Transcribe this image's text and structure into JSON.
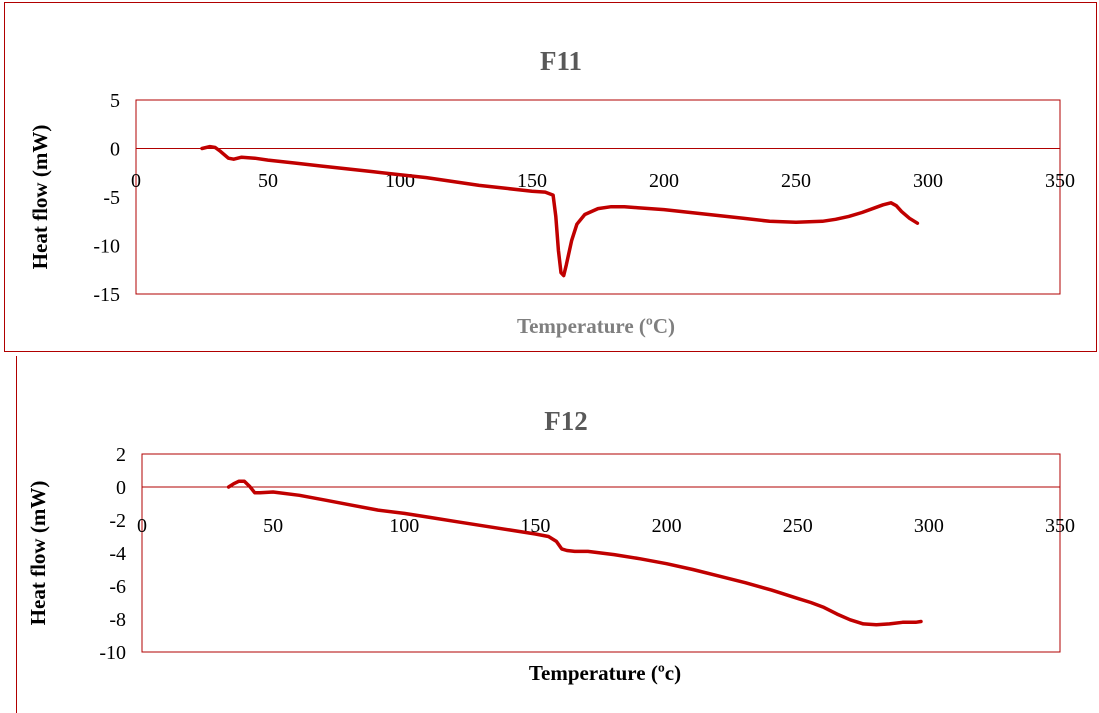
{
  "colors": {
    "line": "#c00000",
    "frame": "#b00000",
    "title": "#595959",
    "xlabel_f11": "#7f7f7f",
    "xlabel_f12": "#000000"
  },
  "chart_data": [
    {
      "type": "line",
      "title": "F11",
      "xlabel": "Temperature (ºC)",
      "ylabel": "Heat flow (mW)",
      "xlim": [
        0,
        350
      ],
      "ylim": [
        -15,
        5
      ],
      "xticks": [
        "0",
        "50",
        "100",
        "150",
        "200",
        "250",
        "300",
        "350"
      ],
      "yticks": [
        "5",
        "0",
        "-5",
        "-10",
        "-15"
      ],
      "grid": false,
      "series": [
        {
          "x": [
            25,
            28,
            30,
            32,
            35,
            37,
            40,
            45,
            50,
            60,
            70,
            80,
            90,
            100,
            110,
            120,
            130,
            140,
            150,
            155,
            158,
            159,
            160,
            161,
            162,
            163,
            165,
            167,
            170,
            175,
            180,
            185,
            190,
            200,
            210,
            220,
            230,
            240,
            250,
            260,
            265,
            270,
            275,
            280,
            283,
            286,
            288,
            290,
            293,
            296
          ],
          "y": [
            0,
            0.2,
            0.1,
            -0.3,
            -1.0,
            -1.1,
            -0.9,
            -1.0,
            -1.2,
            -1.5,
            -1.8,
            -2.1,
            -2.4,
            -2.7,
            -3.0,
            -3.4,
            -3.8,
            -4.1,
            -4.4,
            -4.5,
            -4.8,
            -7.0,
            -10.5,
            -12.8,
            -13.1,
            -12.0,
            -9.5,
            -7.8,
            -6.8,
            -6.2,
            -6.0,
            -6.0,
            -6.1,
            -6.3,
            -6.6,
            -6.9,
            -7.2,
            -7.5,
            -7.6,
            -7.5,
            -7.3,
            -7.0,
            -6.6,
            -6.1,
            -5.8,
            -5.6,
            -5.9,
            -6.5,
            -7.2,
            -7.7
          ]
        }
      ]
    },
    {
      "type": "line",
      "title": "F12",
      "xlabel": "Temperature (ºc)",
      "ylabel": "Heat flow (mW)",
      "xlim": [
        0,
        350
      ],
      "ylim": [
        -10,
        2
      ],
      "xticks": [
        "0",
        "50",
        "100",
        "150",
        "200",
        "250",
        "300",
        "350"
      ],
      "yticks": [
        "2",
        "0",
        "-2",
        "-4",
        "-6",
        "-8",
        "-10"
      ],
      "grid": false,
      "series": [
        {
          "x": [
            33,
            35,
            37,
            39,
            41,
            43,
            45,
            50,
            60,
            70,
            80,
            90,
            100,
            110,
            120,
            130,
            140,
            150,
            155,
            158,
            160,
            162,
            165,
            170,
            180,
            190,
            200,
            210,
            220,
            230,
            240,
            250,
            255,
            260,
            265,
            270,
            275,
            280,
            285,
            290,
            295,
            297
          ],
          "y": [
            0.0,
            0.2,
            0.35,
            0.35,
            0.05,
            -0.35,
            -0.35,
            -0.3,
            -0.5,
            -0.8,
            -1.1,
            -1.4,
            -1.6,
            -1.85,
            -2.1,
            -2.35,
            -2.6,
            -2.85,
            -3.0,
            -3.3,
            -3.75,
            -3.85,
            -3.9,
            -3.9,
            -4.1,
            -4.35,
            -4.65,
            -5.0,
            -5.4,
            -5.8,
            -6.25,
            -6.75,
            -7.0,
            -7.3,
            -7.7,
            -8.05,
            -8.3,
            -8.35,
            -8.3,
            -8.2,
            -8.2,
            -8.15
          ]
        }
      ]
    }
  ]
}
